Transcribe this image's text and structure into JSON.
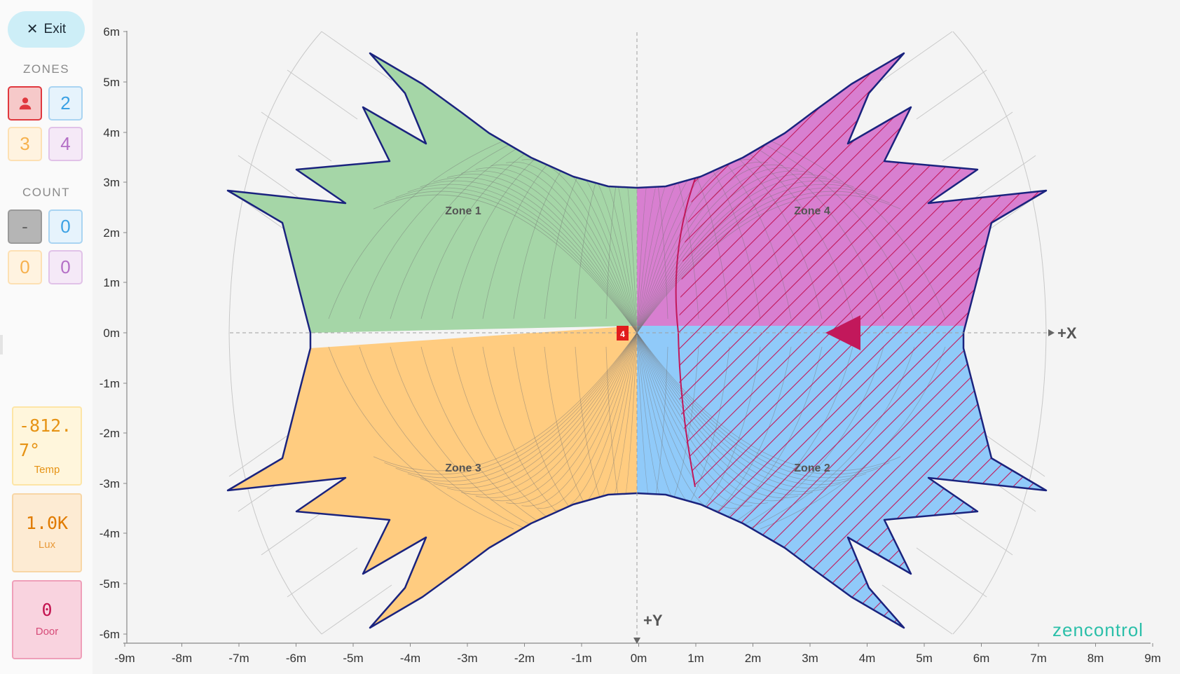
{
  "sidebar": {
    "exit_label": "Exit",
    "zones_label": "ZONES",
    "zones": [
      {
        "label": "",
        "icon": "person-icon",
        "color": "#e0383e"
      },
      {
        "label": "2",
        "color": "#3ba1e4"
      },
      {
        "label": "3",
        "color": "#f6b14e"
      },
      {
        "label": "4",
        "color": "#b46fc6"
      }
    ],
    "count_label": "COUNT",
    "counts": [
      "-",
      "0",
      "0",
      "0"
    ],
    "temp": {
      "value": "-812.7°",
      "label": "Temp"
    },
    "lux": {
      "value": "1.0K",
      "label": "Lux"
    },
    "door": {
      "value": "0",
      "label": "Door"
    }
  },
  "plot": {
    "x_ticks": [
      "-9m",
      "-8m",
      "-7m",
      "-6m",
      "-5m",
      "-4m",
      "-3m",
      "-2m",
      "-1m",
      "0m",
      "1m",
      "2m",
      "3m",
      "4m",
      "5m",
      "6m",
      "7m",
      "8m",
      "9m"
    ],
    "y_ticks": [
      "6m",
      "5m",
      "4m",
      "3m",
      "2m",
      "1m",
      "0m",
      "-1m",
      "-1m",
      "-2m",
      "-3m",
      "-4m",
      "-5m",
      "-6m"
    ],
    "x_axis_label": "+X",
    "y_axis_label": "+Y",
    "zones": [
      {
        "name": "Zone 1",
        "color": "#a5d6a7"
      },
      {
        "name": "Zone 4",
        "color": "#d87fd0"
      },
      {
        "name": "Zone 3",
        "color": "#ffcc80"
      },
      {
        "name": "Zone 2",
        "color": "#90caf9"
      }
    ],
    "sensor_marker": "4",
    "target_color": "#c2185b",
    "hatch_color": "#c2185b"
  },
  "brand": "zencontrol"
}
